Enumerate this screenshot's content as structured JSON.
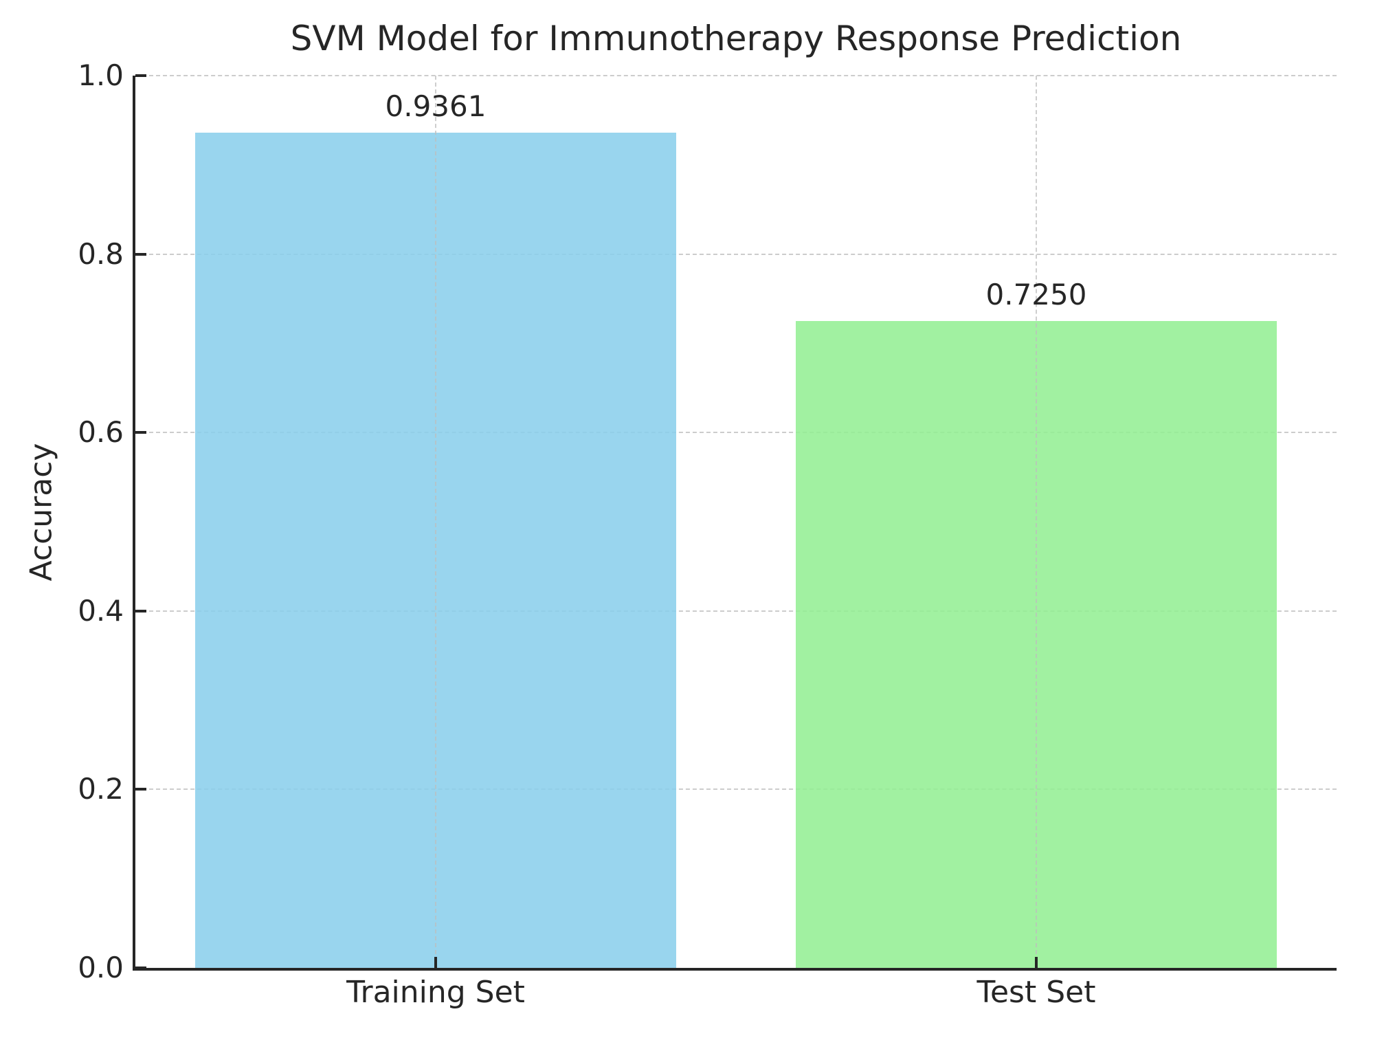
{
  "chart_data": {
    "type": "bar",
    "title": "SVM Model for Immunotherapy Response Prediction",
    "xlabel": "",
    "ylabel": "Accuracy",
    "categories": [
      "Training Set",
      "Test Set"
    ],
    "values": [
      0.9361,
      0.725
    ],
    "value_labels": [
      "0.9361",
      "0.7250"
    ],
    "bar_colors": [
      "#87CEEB",
      "#90EE90"
    ],
    "bar_width_fraction": 0.4,
    "ylim": [
      0.0,
      1.0
    ],
    "yticks": [
      0.0,
      0.2,
      0.4,
      0.6,
      0.8,
      1.0
    ],
    "ytick_labels": [
      "0.0",
      "0.2",
      "0.4",
      "0.6",
      "0.8",
      "1.0"
    ],
    "grid": "dashed, both axes",
    "legend": "none",
    "colors": {
      "spine": "#262626",
      "grid": "#cccccc",
      "text": "#262626",
      "background": "#ffffff"
    }
  }
}
